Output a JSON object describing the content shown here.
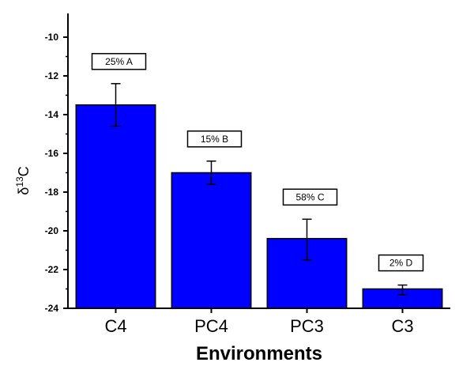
{
  "chart_data": {
    "type": "bar",
    "categories": [
      "C4",
      "PC4",
      "PC3",
      "C3"
    ],
    "values": [
      -13.5,
      -17.0,
      -20.4,
      -23.0
    ],
    "error_low": [
      -14.6,
      -17.6,
      -21.5,
      -23.3
    ],
    "error_high": [
      -12.4,
      -16.4,
      -19.4,
      -22.8
    ],
    "annotations": [
      "25% A",
      "15% B",
      "58% C",
      "2% D"
    ],
    "title": "",
    "xlabel": "Environments",
    "ylabel_base": "δ",
    "ylabel_sup": "13",
    "ylabel_tail": "C",
    "ylim": [
      -24,
      -10
    ],
    "yticks": [
      -10,
      -12,
      -14,
      -16,
      -18,
      -20,
      -22,
      -24
    ],
    "bar_color": "#0000ff",
    "grid": false
  }
}
